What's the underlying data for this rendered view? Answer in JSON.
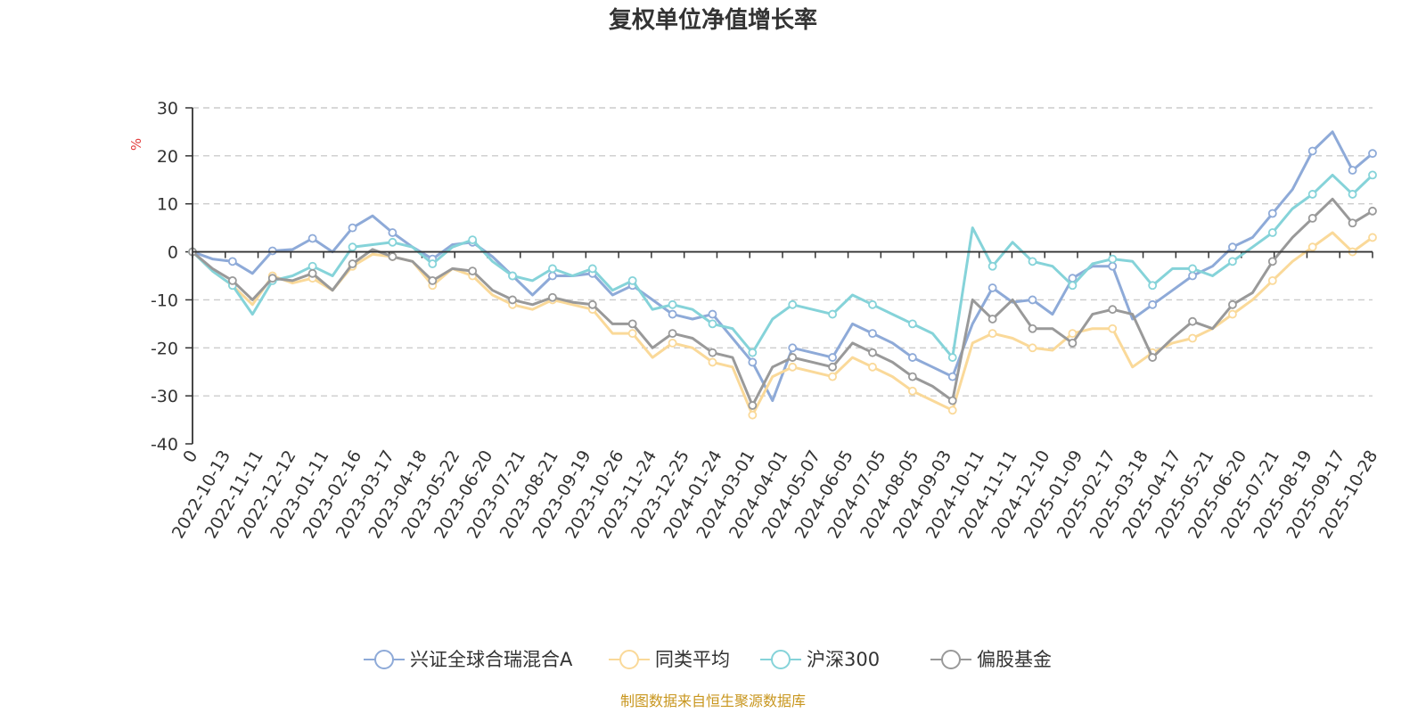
{
  "chart_data": {
    "type": "line",
    "title": "复权单位净值增长率",
    "ylabel": "%",
    "ylim": [
      -40,
      30
    ],
    "yticks": [
      30,
      20,
      10,
      0,
      -10,
      -20,
      -30,
      -40
    ],
    "x_tick_labels": [
      "0",
      "2022-10-13",
      "2022-11-11",
      "2022-12-12",
      "2023-01-11",
      "2023-02-16",
      "2023-03-17",
      "2023-04-18",
      "2023-05-22",
      "2023-06-20",
      "2023-07-21",
      "2023-08-21",
      "2023-09-19",
      "2023-10-26",
      "2023-11-24",
      "2023-12-25",
      "2024-01-24",
      "2024-03-01",
      "2024-04-01",
      "2024-05-07",
      "2024-06-05",
      "2024-07-05",
      "2024-08-05",
      "2024-09-03",
      "2024-10-11",
      "2024-11-11",
      "2024-12-10",
      "2025-01-09",
      "2025-02-17",
      "2025-03-18",
      "2025-04-17",
      "2025-05-21",
      "2025-06-20",
      "2025-07-21",
      "2025-08-19",
      "2025-09-17",
      "2025-10-28"
    ],
    "grid": "dashed-horizontal",
    "legend_position": "bottom",
    "series": [
      {
        "name": "兴证全球合瑞混合A",
        "color": "#8eaad8",
        "values": [
          0,
          -1.5,
          -2,
          -4.5,
          0.2,
          0.5,
          2.8,
          0,
          5,
          7.5,
          4,
          1,
          -1.5,
          1.5,
          2,
          -1,
          -5,
          -9,
          -5,
          -5,
          -4.5,
          -9,
          -7,
          -10,
          -13,
          -14,
          -13,
          -18,
          -23,
          -31,
          -20,
          -21,
          -22,
          -15,
          -17,
          -19,
          -22,
          -24,
          -26,
          -15,
          -7.5,
          -10.5,
          -10,
          -13,
          -5.5,
          -3,
          -3,
          -14,
          -11,
          -8,
          -5,
          -3,
          1,
          3,
          8,
          13,
          21,
          25,
          17,
          20.5
        ]
      },
      {
        "name": "同类平均",
        "color": "#fad999",
        "values": [
          0,
          -4,
          -7,
          -11,
          -5,
          -6.5,
          -5.5,
          -8,
          -3,
          -0.5,
          -1,
          -2,
          -7,
          -3.5,
          -5,
          -9,
          -11,
          -12,
          -10,
          -11,
          -12,
          -17,
          -17,
          -22,
          -19,
          -20,
          -23,
          -24,
          -34,
          -26,
          -24,
          -25,
          -26,
          -22,
          -24,
          -26,
          -29,
          -31,
          -33,
          -19,
          -17,
          -18,
          -20,
          -20.5,
          -17,
          -16,
          -16,
          -24,
          -21,
          -19,
          -18,
          -16,
          -13,
          -10,
          -6,
          -2,
          1,
          4,
          0,
          3
        ]
      },
      {
        "name": "沪深300",
        "color": "#85d3d9",
        "values": [
          0,
          -4,
          -7,
          -13,
          -6,
          -5,
          -3,
          -5,
          1,
          1.5,
          2,
          1,
          -2.5,
          1,
          2.5,
          -2,
          -5,
          -6,
          -3.5,
          -5,
          -3.5,
          -8,
          -6,
          -12,
          -11,
          -12,
          -15,
          -16,
          -21,
          -14,
          -11,
          -12,
          -13,
          -9,
          -11,
          -13,
          -15,
          -17,
          -22,
          5,
          -3,
          2,
          -2,
          -3,
          -7,
          -2.5,
          -1.5,
          -2,
          -7,
          -3.5,
          -3.5,
          -5,
          -2,
          1,
          4,
          9,
          12,
          16,
          12,
          16
        ]
      },
      {
        "name": "偏股基金",
        "color": "#999999",
        "values": [
          0,
          -3.5,
          -6,
          -10,
          -5.5,
          -6,
          -4.5,
          -8,
          -2.5,
          0.5,
          -1,
          -2,
          -6,
          -3.5,
          -4,
          -8,
          -10,
          -11,
          -9.5,
          -10.5,
          -11,
          -15,
          -15,
          -20,
          -17,
          -18,
          -21,
          -22,
          -32,
          -24,
          -22,
          -23,
          -24,
          -19,
          -21,
          -23,
          -26,
          -28,
          -31,
          -10,
          -14,
          -10,
          -16,
          -16,
          -19,
          -13,
          -12,
          -13,
          -22,
          -18,
          -14.5,
          -16,
          -11,
          -8.5,
          -2,
          3,
          7,
          11,
          6,
          8.5
        ]
      }
    ]
  },
  "legend": {
    "items": [
      "兴证全球合瑞混合A",
      "同类平均",
      "沪深300",
      "偏股基金"
    ]
  },
  "source": "制图数据来自恒生聚源数据库"
}
